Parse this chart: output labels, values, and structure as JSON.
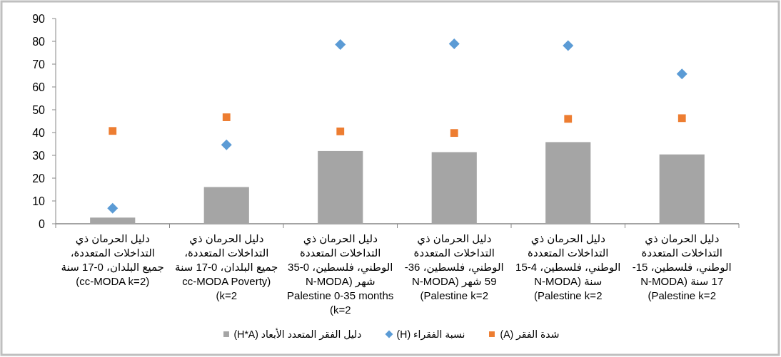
{
  "chart_data": {
    "type": "bar",
    "categories": [
      "دليل الحرمان ذي التداخلات المتعددة، جميع البلدان، 0-17 سنة (cc-MODA k=2)",
      "دليل الحرمان ذي التداخلات المتعددة، جميع البلدان، 0-17 سنة (cc-MODA Poverty k=2)",
      "دليل الحرمان ذي التداخلات المتعددة الوطني، فلسطين، 0-35 شهر (N-MODA Palestine 0-35 months k=2)",
      "دليل الحرمان ذي التداخلات المتعددة الوطني، فلسطين، 36-59 شهر (N-MODA Palestine k=2)",
      "دليل الحرمان ذي التداخلات المتعددة الوطني، فلسطين، 4-15 سنة (N-MODA Palestine k=2)",
      "دليل الحرمان ذي التداخلات المتعددة الوطني، فلسطين، 15-17 سنة (N-MODA Palestine k=2)"
    ],
    "series": [
      {
        "name": "دليل الفقر المتعدد الأبعاد (H*A)",
        "color": "#a5a5a5",
        "values": [
          2.7,
          16.1,
          31.9,
          31.4,
          35.8,
          30.4
        ]
      },
      {
        "name": "نسبة الفقراء (H)",
        "type": "scatter",
        "marker": "diamond",
        "color": "#5b9bd5",
        "values": [
          6.8,
          34.6,
          78.6,
          78.9,
          78.1,
          65.7
        ]
      },
      {
        "name": "شدة الفقر (A)",
        "type": "scatter",
        "marker": "square",
        "color": "#ed7d31",
        "values": [
          40.7,
          46.7,
          40.5,
          39.8,
          46.0,
          46.3
        ]
      }
    ],
    "ylim": [
      0,
      90
    ],
    "yticks": [
      0,
      10,
      20,
      30,
      40,
      50,
      60,
      70,
      80,
      90
    ],
    "legend": "bottom"
  }
}
